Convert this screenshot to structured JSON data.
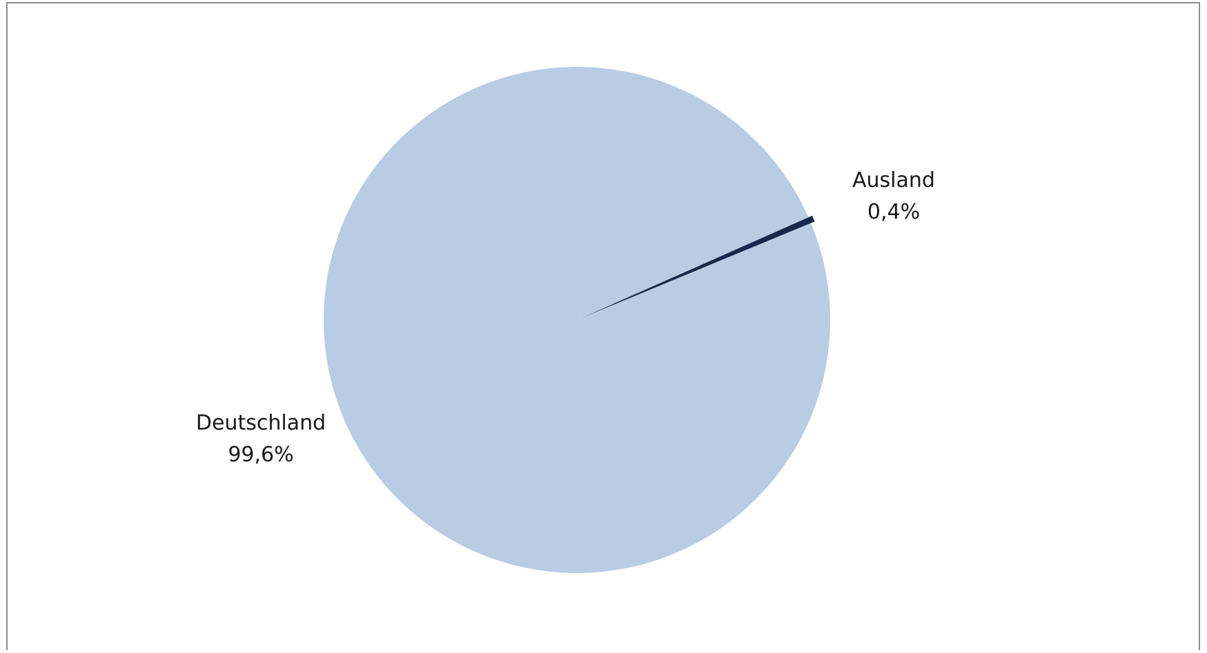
{
  "chart_data": {
    "type": "pie",
    "title": "",
    "slices": [
      {
        "name": "Deutschland",
        "value": 99.6,
        "label_value": "99,6%",
        "color": "#b8cce4"
      },
      {
        "name": "Ausland",
        "value": 0.4,
        "label_value": "0,4%",
        "color": "#17294a"
      }
    ],
    "start_angle_deg": -22.5,
    "exploded_slice": "Ausland",
    "data_labels": true,
    "legend": "none"
  }
}
